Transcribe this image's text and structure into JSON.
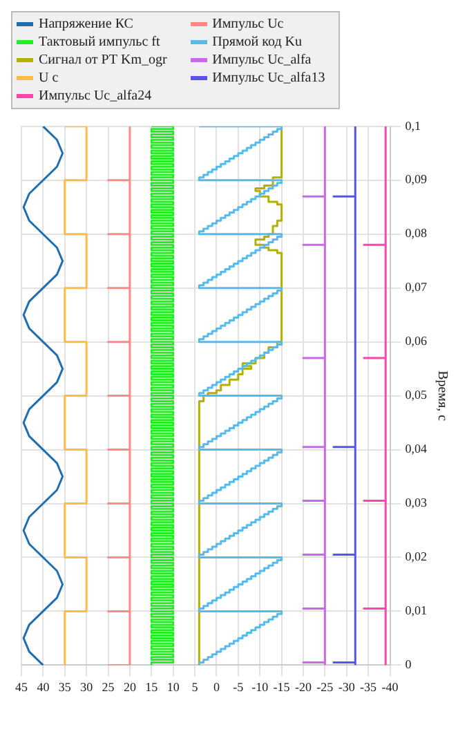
{
  "chart_data": {
    "type": "line",
    "ylabel": "Время, с",
    "xlim": [
      45,
      -40
    ],
    "ylim": [
      0,
      0.1
    ],
    "yticks": [
      0,
      {
        "value": 0.01,
        "label": "0,01"
      },
      {
        "value": 0.02,
        "label": "0,02"
      },
      {
        "value": 0.03,
        "label": "0,03"
      },
      {
        "value": 0.04,
        "label": "0,04"
      },
      {
        "value": 0.05,
        "label": "0,05"
      },
      {
        "value": 0.06,
        "label": "0,06"
      },
      {
        "value": 0.07,
        "label": "0,07"
      },
      {
        "value": 0.08,
        "label": "0,08"
      },
      {
        "value": 0.09,
        "label": "0,09"
      },
      {
        "value": 0.1,
        "label": "0,1"
      }
    ],
    "xticks": [
      45,
      40,
      35,
      30,
      25,
      20,
      15,
      10,
      5,
      0,
      -5,
      -10,
      -15,
      -20,
      -25,
      -30,
      -35,
      -40
    ],
    "grid": true,
    "legend": "top left",
    "series": [
      {
        "name": "Напряжение КС",
        "color": "#1f6eb0",
        "values": [
          0,
          0.0025,
          0.005,
          0.0075,
          0.01,
          0.0125,
          0.015,
          0.0175,
          0.02,
          0.0225,
          0.025,
          0.0275,
          0.03,
          0.0325,
          0.035,
          0.0375,
          0.04,
          0.0425,
          0.045,
          0.0475,
          0.05,
          0.0525,
          0.055,
          0.0575,
          0.06,
          0.0625,
          0.065,
          0.0675,
          0.07,
          0.0725,
          0.075,
          0.0775,
          0.08,
          0.0825,
          0.085,
          0.0875,
          0.09,
          0.0925,
          0.095,
          0.0975,
          0.1
        ],
        "x": [
          40,
          43.2,
          44.5,
          43.2,
          40,
          36.8,
          35.5,
          36.8,
          40,
          43.2,
          44.5,
          43.2,
          40,
          36.8,
          35.5,
          36.8,
          40,
          43.2,
          44.5,
          43.2,
          40,
          36.8,
          35.5,
          36.8,
          40,
          43.2,
          44.5,
          43.2,
          40,
          36.8,
          35.5,
          36.8,
          40,
          43.2,
          44.5,
          43.2,
          40,
          36.8,
          35.5,
          36.8,
          40
        ]
      },
      {
        "name": "Импульс Uc",
        "color": "#ff8888",
        "values": [
          0,
          0,
          0.01,
          0.01,
          0.01,
          0.02,
          0.02,
          0.02,
          0.03,
          0.03,
          0.03,
          0.04,
          0.04,
          0.04,
          0.05,
          0.05,
          0.05,
          0.06,
          0.06,
          0.06,
          0.07,
          0.07,
          0.07,
          0.08,
          0.08,
          0.08,
          0.09,
          0.09,
          0.09,
          0.1
        ],
        "x": [
          25,
          20,
          20,
          25,
          20,
          20,
          25,
          20,
          20,
          25,
          20,
          20,
          25,
          20,
          20,
          25,
          20,
          20,
          25,
          20,
          20,
          25,
          20,
          20,
          25,
          20,
          20,
          25,
          20,
          20
        ]
      },
      {
        "name": "Тактовый импульс ft",
        "color": "#22ee22",
        "type": "step",
        "values": [
          0,
          0.0005,
          0.001,
          0.0015,
          0.002,
          0.0025,
          0.003,
          0.0035,
          0.004,
          0.0045,
          0.005,
          0.0055,
          0.006,
          0.0065,
          0.007,
          0.0075,
          0.008,
          0.0085,
          0.009,
          0.0095,
          0.01,
          0.0105,
          0.011,
          0.0115,
          0.012,
          0.0125,
          0.013,
          0.0135,
          0.014,
          0.0145,
          0.015,
          0.0155,
          0.016,
          0.0165,
          0.017,
          0.0175,
          0.018,
          0.0185,
          0.019,
          0.0195,
          0.02,
          0.0205,
          0.021,
          0.0215,
          0.022,
          0.0225,
          0.023,
          0.0235,
          0.024,
          0.0245,
          0.025,
          0.0255,
          0.026,
          0.0265,
          0.027,
          0.0275,
          0.028,
          0.0285,
          0.029,
          0.0295,
          0.03,
          0.0305,
          0.031,
          0.0315,
          0.032,
          0.0325,
          0.033,
          0.0335,
          0.034,
          0.0345,
          0.035,
          0.0355,
          0.036,
          0.0365,
          0.037,
          0.0375,
          0.038,
          0.0385,
          0.039,
          0.0395,
          0.04,
          0.0405,
          0.041,
          0.0415,
          0.042,
          0.0425,
          0.043,
          0.0435,
          0.044,
          0.0445,
          0.045,
          0.0455,
          0.046,
          0.0465,
          0.047,
          0.0475,
          0.048,
          0.0485,
          0.049,
          0.0495,
          0.05,
          0.0505,
          0.051,
          0.0515,
          0.052,
          0.0525,
          0.053,
          0.0535,
          0.054,
          0.0545,
          0.055,
          0.0555,
          0.056,
          0.0565,
          0.057,
          0.0575,
          0.058,
          0.0585,
          0.059,
          0.0595,
          0.06,
          0.0605,
          0.061,
          0.0615,
          0.062,
          0.0625,
          0.063,
          0.0635,
          0.064,
          0.0645,
          0.065,
          0.0655,
          0.066,
          0.0665,
          0.067,
          0.0675,
          0.068,
          0.0685,
          0.069,
          0.0695,
          0.07,
          0.0705,
          0.071,
          0.0715,
          0.072,
          0.0725,
          0.073,
          0.0735,
          0.074,
          0.0745,
          0.075,
          0.0755,
          0.076,
          0.0765,
          0.077,
          0.0775,
          0.078,
          0.0785,
          0.079,
          0.0795,
          0.08,
          0.0805,
          0.081,
          0.0815,
          0.082,
          0.0825,
          0.083,
          0.0835,
          0.084,
          0.0845,
          0.085,
          0.0855,
          0.086,
          0.0865,
          0.087,
          0.0875,
          0.088,
          0.0885,
          0.089,
          0.0895,
          0.09,
          0.0905,
          0.091,
          0.0915,
          0.092,
          0.0925,
          0.093,
          0.0935,
          0.094,
          0.0945,
          0.095,
          0.0955,
          0.096,
          0.0965,
          0.097,
          0.0975,
          0.098,
          0.0985,
          0.099,
          0.0995,
          0.1
        ],
        "x": [
          15,
          10,
          15,
          10,
          15,
          10,
          15,
          10,
          15,
          10,
          15,
          10,
          15,
          10,
          15,
          10,
          15,
          10,
          15,
          10,
          15,
          10,
          15,
          10,
          15,
          10,
          15,
          10,
          15,
          10,
          15,
          10,
          15,
          10,
          15,
          10,
          15,
          10,
          15,
          10,
          15,
          10,
          15,
          10,
          15,
          10,
          15,
          10,
          15,
          10,
          15,
          10,
          15,
          10,
          15,
          10,
          15,
          10,
          15,
          10,
          15,
          10,
          15,
          10,
          15,
          10,
          15,
          10,
          15,
          10,
          15,
          10,
          15,
          10,
          15,
          10,
          15,
          10,
          15,
          10,
          15,
          10,
          15,
          10,
          15,
          10,
          15,
          10,
          15,
          10,
          15,
          10,
          15,
          10,
          15,
          10,
          15,
          10,
          15,
          10,
          15,
          10,
          15,
          10,
          15,
          10,
          15,
          10,
          15,
          10,
          15,
          10,
          15,
          10,
          15,
          10,
          15,
          10,
          15,
          10,
          15,
          10,
          15,
          10,
          15,
          10,
          15,
          10,
          15,
          10,
          15,
          10,
          15,
          10,
          15,
          10,
          15,
          10,
          15,
          10,
          15,
          10,
          15,
          10,
          15,
          10,
          15,
          10,
          15,
          10,
          15,
          10,
          15,
          10,
          15,
          10,
          15,
          10,
          15,
          10,
          15,
          10,
          15,
          10,
          15,
          10,
          15,
          10,
          15,
          10,
          15,
          10,
          15,
          10,
          15,
          10,
          15,
          10,
          15,
          10,
          15,
          10,
          15,
          10,
          15,
          10,
          15,
          10,
          15,
          10,
          15,
          10,
          15,
          10,
          15,
          10,
          15,
          10,
          15,
          10,
          15
        ]
      },
      {
        "name": "Прямой код Ku",
        "color": "#55bbee",
        "type": "step",
        "values": [
          0,
          0.0005,
          0.001,
          0.0015,
          0.002,
          0.0025,
          0.003,
          0.0035,
          0.004,
          0.0045,
          0.005,
          0.0055,
          0.006,
          0.0065,
          0.007,
          0.0075,
          0.008,
          0.0085,
          0.009,
          0.0095,
          0.01,
          0.0105,
          0.011,
          0.0115,
          0.012,
          0.0125,
          0.013,
          0.0135,
          0.014,
          0.0145,
          0.015,
          0.0155,
          0.016,
          0.0165,
          0.017,
          0.0175,
          0.018,
          0.0185,
          0.019,
          0.0195,
          0.02,
          0.0205,
          0.021,
          0.0215,
          0.022,
          0.0225,
          0.023,
          0.0235,
          0.024,
          0.0245,
          0.025,
          0.0255,
          0.026,
          0.0265,
          0.027,
          0.0275,
          0.028,
          0.0285,
          0.029,
          0.0295,
          0.03,
          0.0305,
          0.031,
          0.0315,
          0.032,
          0.0325,
          0.033,
          0.0335,
          0.034,
          0.0345,
          0.035,
          0.0355,
          0.036,
          0.0365,
          0.037,
          0.0375,
          0.038,
          0.0385,
          0.039,
          0.0395,
          0.04,
          0.0405,
          0.041,
          0.0415,
          0.042,
          0.0425,
          0.043,
          0.0435,
          0.044,
          0.0445,
          0.045,
          0.0455,
          0.046,
          0.0465,
          0.047,
          0.0475,
          0.048,
          0.0485,
          0.049,
          0.0495,
          0.05,
          0.0505,
          0.051,
          0.0515,
          0.052,
          0.0525,
          0.053,
          0.0535,
          0.054,
          0.0545,
          0.055,
          0.0555,
          0.056,
          0.0565,
          0.057,
          0.0575,
          0.058,
          0.0585,
          0.059,
          0.0595,
          0.06,
          0.0605,
          0.061,
          0.0615,
          0.062,
          0.0625,
          0.063,
          0.0635,
          0.064,
          0.0645,
          0.065,
          0.0655,
          0.066,
          0.0665,
          0.067,
          0.0675,
          0.068,
          0.0685,
          0.069,
          0.0695,
          0.07,
          0.0705,
          0.071,
          0.0715,
          0.072,
          0.0725,
          0.073,
          0.0735,
          0.074,
          0.0745,
          0.075,
          0.0755,
          0.076,
          0.0765,
          0.077,
          0.0775,
          0.078,
          0.0785,
          0.079,
          0.0795,
          0.08,
          0.0805,
          0.081,
          0.0815,
          0.082,
          0.0825,
          0.083,
          0.0835,
          0.084,
          0.0845,
          0.085,
          0.0855,
          0.086,
          0.0865,
          0.087,
          0.0875,
          0.088,
          0.0885,
          0.089,
          0.0895,
          0.09,
          0.0905,
          0.091,
          0.0915,
          0.092,
          0.0925,
          0.093,
          0.0935,
          0.094,
          0.0945,
          0.095,
          0.0955,
          0.096,
          0.0965,
          0.097,
          0.0975,
          0.098,
          0.0985,
          0.099,
          0.0995,
          0.1
        ],
        "x": [
          4,
          3,
          2,
          1,
          0,
          -1,
          -2,
          -3,
          -4,
          -5,
          -6,
          -7,
          -8,
          -9,
          -10,
          -11,
          -12,
          -13,
          -14,
          -15,
          4,
          3,
          2,
          1,
          0,
          -1,
          -2,
          -3,
          -4,
          -5,
          -6,
          -7,
          -8,
          -9,
          -10,
          -11,
          -12,
          -13,
          -14,
          -15,
          4,
          3,
          2,
          1,
          0,
          -1,
          -2,
          -3,
          -4,
          -5,
          -6,
          -7,
          -8,
          -9,
          -10,
          -11,
          -12,
          -13,
          -14,
          -15,
          4,
          3,
          2,
          1,
          0,
          -1,
          -2,
          -3,
          -4,
          -5,
          -6,
          -7,
          -8,
          -9,
          -10,
          -11,
          -12,
          -13,
          -14,
          -15,
          4,
          3,
          2,
          1,
          0,
          -1,
          -2,
          -3,
          -4,
          -5,
          -6,
          -7,
          -8,
          -9,
          -10,
          -11,
          -12,
          -13,
          -14,
          -15,
          4,
          3,
          2,
          1,
          0,
          -1,
          -2,
          -3,
          -4,
          -5,
          -6,
          -7,
          -8,
          -9,
          -10,
          -11,
          -12,
          -13,
          -14,
          -15,
          4,
          3,
          2,
          1,
          0,
          -1,
          -2,
          -3,
          -4,
          -5,
          -6,
          -7,
          -8,
          -9,
          -10,
          -11,
          -12,
          -13,
          -14,
          -15,
          4,
          3,
          2,
          1,
          0,
          -1,
          -2,
          -3,
          -4,
          -5,
          -6,
          -7,
          -8,
          -9,
          -10,
          -11,
          -12,
          -13,
          -14,
          -15,
          4,
          3,
          2,
          1,
          0,
          -1,
          -2,
          -3,
          -4,
          -5,
          -6,
          -7,
          -8,
          -9,
          -10,
          -11,
          -12,
          -13,
          -14,
          -15,
          4,
          3,
          2,
          1,
          0,
          -1,
          -2,
          -3,
          -4,
          -5,
          -6,
          -7,
          -8,
          -9,
          -10,
          -11,
          -12,
          -13,
          -14,
          -15,
          4
        ]
      },
      {
        "name": "Сигнал от РТ Km_ogr",
        "color": "#b5b000",
        "type": "step",
        "values": [
          0,
          0.049,
          0.05,
          0.0505,
          0.051,
          0.052,
          0.053,
          0.054,
          0.055,
          0.0555,
          0.056,
          0.057,
          0.058,
          0.059,
          0.06,
          0.0765,
          0.077,
          0.0775,
          0.078,
          0.079,
          0.0795,
          0.08,
          0.0815,
          0.0825,
          0.0855,
          0.086,
          0.087,
          0.088,
          0.0885,
          0.089,
          0.0905,
          0.1
        ],
        "x": [
          4,
          3,
          2,
          0,
          -1,
          -3,
          -5,
          -6,
          -8,
          -6,
          -9,
          -11,
          -12,
          -14,
          -15,
          -14,
          -12,
          -11,
          -9,
          -11,
          -12,
          -13,
          -14,
          -15,
          -14,
          -12,
          -10,
          -9,
          -11,
          -13,
          -15,
          -15
        ]
      },
      {
        "name": "Импульс Uc_alfa",
        "color": "#cc66ee",
        "values": [
          0,
          0.0005,
          0.0005,
          0.0005,
          0.0105,
          0.0105,
          0.0105,
          0.0205,
          0.0205,
          0.0205,
          0.0305,
          0.0305,
          0.0305,
          0.0405,
          0.0405,
          0.0405,
          0.057,
          0.057,
          0.057,
          0.078,
          0.078,
          0.078,
          0.087,
          0.087,
          0.087,
          0.1
        ],
        "x": [
          -25,
          -25,
          -20,
          -25,
          -25,
          -20,
          -25,
          -25,
          -20,
          -25,
          -25,
          -20,
          -25,
          -25,
          -20,
          -25,
          -25,
          -20,
          -25,
          -25,
          -20,
          -25,
          -25,
          -20,
          -25,
          -25
        ]
      },
      {
        "name": "U c",
        "color": "#ffbb44",
        "type": "step",
        "values": [
          0,
          0.01,
          0.02,
          0.03,
          0.04,
          0.05,
          0.06,
          0.07,
          0.08,
          0.09,
          0.1
        ],
        "x": [
          35,
          30,
          35,
          30,
          35,
          30,
          35,
          30,
          35,
          30,
          35
        ]
      },
      {
        "name": "Импульс Uc_alfa13",
        "color": "#5555ee",
        "values": [
          0,
          0.0005,
          0.0005,
          0.0005,
          0.0205,
          0.0205,
          0.0205,
          0.0405,
          0.0405,
          0.0405,
          0.087,
          0.087,
          0.087,
          0.1
        ],
        "x": [
          -32,
          -32,
          -27,
          -32,
          -32,
          -27,
          -32,
          -32,
          -27,
          -32,
          -32,
          -27,
          -32,
          -32
        ]
      },
      {
        "name": "Импульс Uc_alfa24",
        "color": "#ff44aa",
        "values": [
          0,
          0.0105,
          0.0105,
          0.0105,
          0.0305,
          0.0305,
          0.0305,
          0.057,
          0.057,
          0.057,
          0.078,
          0.078,
          0.078,
          0.1
        ],
        "x": [
          -39,
          -39,
          -34,
          -39,
          -39,
          -34,
          -39,
          -39,
          -34,
          -39,
          -39,
          -34,
          -39,
          -39
        ]
      }
    ]
  }
}
